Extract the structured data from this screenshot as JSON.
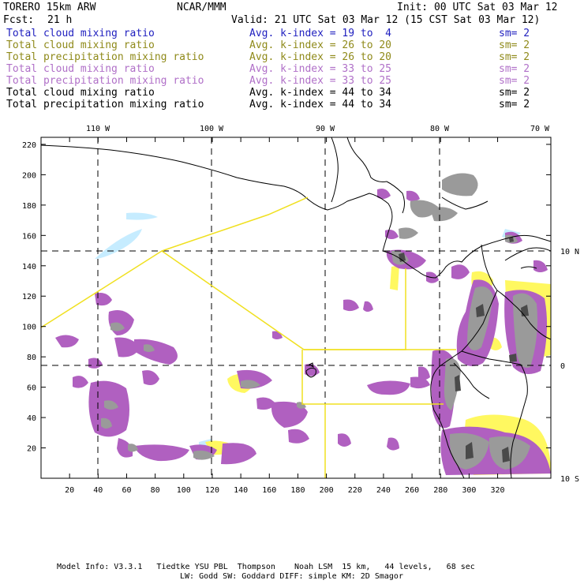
{
  "header": {
    "model": "TORERO 15km ARW",
    "org": "NCAR/MMM",
    "init": "Init: 00 UTC Sat 03 Mar 12",
    "fcst_label": "Fcst:",
    "fcst_value": "21 h",
    "valid": "Valid: 21 UTC Sat 03 Mar 12 (15 CST Sat 03 Mar 12)"
  },
  "legend": [
    {
      "field": "Total cloud mixing ratio",
      "kindex": "Avg. k-index = 19 to  4",
      "sm": "sm= 2",
      "color": "#1f1fbf"
    },
    {
      "field": "Total cloud mixing ratio",
      "kindex": "Avg. k-index = 26 to 20",
      "sm": "sm= 2",
      "color": "#8f8a1a"
    },
    {
      "field": "Total precipitation mixing ratio",
      "kindex": "Avg. k-index = 26 to 20",
      "sm": "sm= 2",
      "color": "#8f8a1a"
    },
    {
      "field": "Total cloud mixing ratio",
      "kindex": "Avg. k-index = 33 to 25",
      "sm": "sm= 2",
      "color": "#b070c8"
    },
    {
      "field": "Total precipitation mixing ratio",
      "kindex": "Avg. k-index = 33 to 25",
      "sm": "sm= 2",
      "color": "#b070c8"
    },
    {
      "field": "Total cloud mixing ratio",
      "kindex": "Avg. k-index = 44 to 34",
      "sm": "sm= 2",
      "color": "#000000"
    },
    {
      "field": "Total precipitation mixing ratio",
      "kindex": "Avg. k-index = 44 to 34",
      "sm": "sm= 2",
      "color": "#000000"
    }
  ],
  "axes": {
    "lon_labels": [
      "110 W",
      "100 W",
      "90 W",
      "80 W",
      "70 W"
    ],
    "lat_labels": [
      "10 N",
      "0",
      "10 S"
    ],
    "x_ticks": [
      "20",
      "40",
      "60",
      "80",
      "100",
      "120",
      "140",
      "160",
      "180",
      "200",
      "220",
      "240",
      "260",
      "280",
      "300",
      "320"
    ],
    "y_ticks": [
      "20",
      "40",
      "60",
      "80",
      "100",
      "120",
      "140",
      "160",
      "180",
      "200",
      "220"
    ]
  },
  "footer": {
    "line1": "Model Info: V3.3.1   Tiedtke YSU PBL  Thompson    Noah LSM  15 km,   44 levels,   68 sec",
    "line2": "LW: Godd SW: Goddard DIFF: simple KM: 2D Smagor"
  },
  "colors": {
    "purple": "#b060c0",
    "gray": "#9a9a9a",
    "dark_gray": "#4a4a4a",
    "yellow": "#fff860",
    "light_blue": "#c6ecff",
    "domain_line": "#f0e020"
  }
}
